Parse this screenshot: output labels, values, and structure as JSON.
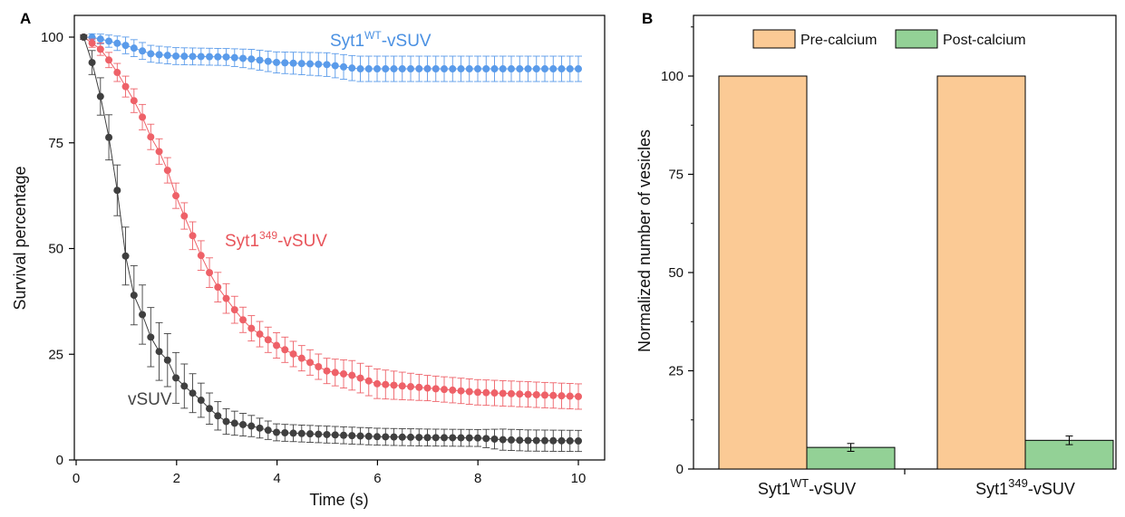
{
  "panels": {
    "a_label": "A",
    "b_label": "B"
  },
  "chart_data": [
    {
      "type": "scatter",
      "xlabel": "Time (s)",
      "ylabel": "Survival percentage",
      "xlim": [
        0,
        10
      ],
      "ylim": [
        0,
        100
      ],
      "xticks": [
        "0",
        "2",
        "4",
        "6",
        "8",
        "10"
      ],
      "yticks": [
        "0",
        "25",
        "50",
        "75",
        "100"
      ],
      "annotations": [
        {
          "series": "Syt1WT-vSUV",
          "base": "Syt1",
          "sup": "WT",
          "tail": "-vSUV",
          "color": "#4a90e2"
        },
        {
          "series": "Syt1349-vSUV",
          "base": "Syt1",
          "sup": "349",
          "tail": "-vSUV",
          "color": "#e8545a"
        },
        {
          "series": "vSUV",
          "base": "vSUV",
          "sup": "",
          "tail": "",
          "color": "#444444"
        }
      ],
      "series": [
        {
          "id": "wt",
          "color": "#5a9bea",
          "x": [
            0.15,
            0.3,
            0.5,
            1.0,
            1.5,
            2.0,
            3.0,
            3.5,
            4.0,
            5.0,
            5.6,
            6.5,
            8.0,
            10.0
          ],
          "y": [
            100,
            100,
            99.5,
            98,
            96,
            95.5,
            95.3,
            94.8,
            94,
            93.5,
            92.5,
            92.5,
            92.5,
            92.5
          ],
          "err": [
            0.5,
            0.8,
            1.2,
            2,
            2,
            2,
            2,
            2.3,
            2.5,
            2.8,
            3,
            3,
            3,
            3
          ]
        },
        {
          "id": "m349",
          "color": "#ee6168",
          "x": [
            0.15,
            0.5,
            0.75,
            1.0,
            1.25,
            1.5,
            1.75,
            2.0,
            2.25,
            2.5,
            2.75,
            3.0,
            3.25,
            3.5,
            4.0,
            4.5,
            5.0,
            5.5,
            6.0,
            7.0,
            8.0,
            9.0,
            10.0
          ],
          "y": [
            100,
            97,
            93,
            88,
            83,
            76,
            71,
            62,
            55,
            48,
            42,
            38,
            34,
            31,
            27,
            24,
            21,
            20,
            18,
            17,
            16,
            15.5,
            15
          ],
          "err": [
            0.5,
            1.5,
            2,
            2.5,
            3,
            3,
            3,
            3,
            3.2,
            3.5,
            3.5,
            3.5,
            3,
            3,
            3,
            3,
            3,
            3.5,
            3.5,
            3,
            3,
            3,
            3
          ]
        },
        {
          "id": "vsuv",
          "color": "#3f3f3f",
          "x": [
            0.15,
            0.4,
            0.6,
            0.75,
            0.9,
            1.0,
            1.15,
            1.3,
            1.45,
            1.6,
            1.75,
            1.9,
            2.0,
            2.2,
            2.5,
            2.75,
            3.0,
            3.5,
            4.0,
            5.0,
            6.0,
            7.0,
            8.0,
            8.5,
            9.0,
            10.0
          ],
          "y": [
            100,
            91,
            79,
            71,
            55,
            47,
            39,
            35,
            30,
            26,
            25,
            22,
            19,
            17,
            14,
            11,
            9,
            8,
            6.5,
            6,
            5.5,
            5.3,
            5.2,
            4.8,
            4.6,
            4.5
          ],
          "err": [
            0.5,
            4,
            5,
            6,
            6,
            7,
            7,
            7,
            7,
            7,
            6.5,
            6,
            6,
            5,
            4,
            3.5,
            3,
            2.5,
            2,
            2,
            2,
            2,
            2,
            2.5,
            2.5,
            2.5
          ]
        }
      ]
    },
    {
      "type": "bar",
      "ylabel": "Normalized  number of vesicles",
      "ylim": [
        0,
        115
      ],
      "yticks": [
        "0",
        "25",
        "50",
        "75",
        "100"
      ],
      "categories": [
        {
          "base": "Syt1",
          "sup": "WT",
          "tail": "-vSUV"
        },
        {
          "base": "Syt1",
          "sup": "349",
          "tail": "-vSUV"
        }
      ],
      "legend_position": "top",
      "series": [
        {
          "name": "Pre-calcium",
          "color": "#fbca95",
          "values": [
            100,
            100
          ],
          "err": [
            0,
            0
          ]
        },
        {
          "name": "Post-calcium",
          "color": "#93d196",
          "values": [
            5.5,
            7.3
          ],
          "err": [
            1,
            1.1
          ]
        }
      ]
    }
  ]
}
